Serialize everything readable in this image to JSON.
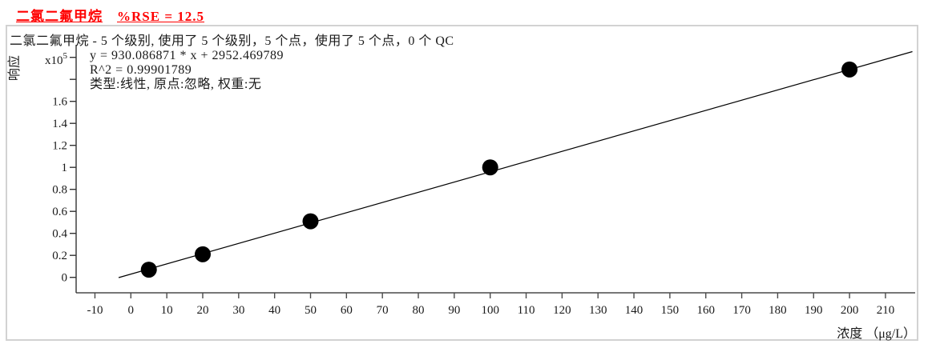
{
  "header": {
    "compound": "二氯二氟甲烷",
    "rse_label": "%RSE = 12.5"
  },
  "chart": {
    "info_line": "二氯二氟甲烷 - 5 个级别, 使用了 5 个级别，5 个点，使用了 5 个点，0 个 QC",
    "equation_line": "y = 930.086871 * x  + 2952.469789",
    "r2_line": "R^2 = 0.99901789",
    "fit_type_line": "类型:线性, 原点:忽略, 权重:无",
    "y_axis_label": "响应",
    "y_scale_base": "x10",
    "y_scale_exp": "5",
    "x_axis_label": "浓度 （μg/L）"
  },
  "chart_data": {
    "type": "scatter",
    "title": "二氯二氟甲烷 %RSE = 12.5",
    "xlabel": "浓度 (μg/L)",
    "ylabel": "响应 (x10^5)",
    "points": {
      "x": [
        5,
        20,
        50,
        100,
        200
      ],
      "y_x1e5": [
        0.07,
        0.21,
        0.51,
        1.0,
        1.89
      ]
    },
    "fit": {
      "type": "线性",
      "slope": 930.086871,
      "intercept": 2952.469789,
      "r_squared": 0.99901789,
      "origin": "忽略",
      "weight": "无",
      "rse_percent": 12.5,
      "levels": 5,
      "levels_used": 5,
      "points_count": 5,
      "points_used": 5,
      "qc_count": 0
    },
    "x_ticks": [
      -10,
      0,
      10,
      20,
      30,
      40,
      50,
      60,
      70,
      80,
      90,
      100,
      110,
      120,
      130,
      140,
      150,
      160,
      170,
      180,
      190,
      200,
      210
    ],
    "y_ticks_x1e5": [
      0,
      0.2,
      0.4,
      0.6,
      0.8,
      1.0,
      1.2,
      1.4,
      1.6,
      1.8,
      2.0
    ],
    "y_tick_labels": [
      "0",
      "0.2",
      "0.4",
      "0.6",
      "0.8",
      "1",
      "1.2",
      "1.4",
      "1.6",
      "",
      ""
    ],
    "line_draw_range_x": [
      -3.4,
      217.5
    ],
    "grid": false,
    "legend": false
  },
  "style": {
    "title_color": "#ff0000",
    "axis_color": "#4a4a4a",
    "line_color": "#000000",
    "point_color": "#000000",
    "border_color": "#d2d2d2",
    "text_color": "#1a1a1a"
  }
}
